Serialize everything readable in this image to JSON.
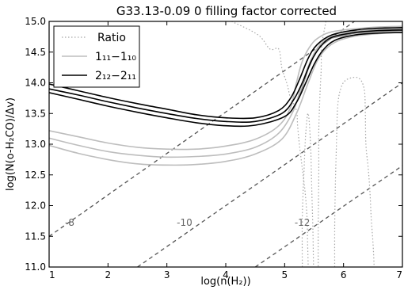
{
  "chart_data": {
    "type": "line",
    "title": "G33.13-0.09 0 filling factor corrected",
    "xlabel": "log(n(H₂))",
    "ylabel": "log(N(o-H₂CO)/Δv)",
    "xlim": [
      1,
      7
    ],
    "ylim": [
      11.0,
      15.0
    ],
    "x_ticks": [
      "1",
      "2",
      "3",
      "4",
      "5",
      "6",
      "7"
    ],
    "y_ticks": [
      "11.0",
      "11.5",
      "12.0",
      "12.5",
      "13.0",
      "13.5",
      "14.0",
      "14.5",
      "15.0"
    ],
    "grid": false,
    "legend": {
      "placement": "top-left",
      "entries": [
        "Ratio",
        "1₁₁−1₁₀",
        "2₁₂−2₁₁"
      ]
    },
    "colors": {
      "ratio": "#a8a8a8",
      "tau_1_1": "#bdbdbd",
      "tau_2_2": "#000000",
      "fill": "#8c8c8c",
      "dashed": "#555555",
      "contour_label": "#666666"
    },
    "contour_labels": [
      "-8",
      "-10",
      "-12"
    ],
    "series": [
      {
        "name": "1₁₁−1₁₀",
        "style": "gray",
        "curves": [
          [
            [
              1.0,
              13.22
            ],
            [
              1.5,
              13.12
            ],
            [
              2.0,
              13.02
            ],
            [
              2.5,
              12.95
            ],
            [
              3.0,
              12.92
            ],
            [
              3.5,
              12.92
            ],
            [
              4.0,
              12.97
            ],
            [
              4.5,
              13.08
            ],
            [
              4.9,
              13.3
            ],
            [
              5.1,
              13.6
            ],
            [
              5.2,
              14.0
            ],
            [
              5.3,
              14.35
            ],
            [
              5.45,
              14.62
            ],
            [
              5.6,
              14.75
            ],
            [
              5.8,
              14.83
            ],
            [
              6.2,
              14.88
            ],
            [
              6.6,
              14.91
            ],
            [
              7.0,
              14.92
            ]
          ],
          [
            [
              1.0,
              13.1
            ],
            [
              1.5,
              12.98
            ],
            [
              2.0,
              12.88
            ],
            [
              2.5,
              12.82
            ],
            [
              3.0,
              12.79
            ],
            [
              3.5,
              12.8
            ],
            [
              4.0,
              12.84
            ],
            [
              4.5,
              12.95
            ],
            [
              4.9,
              13.18
            ],
            [
              5.15,
              13.55
            ],
            [
              5.3,
              14.0
            ],
            [
              5.45,
              14.38
            ],
            [
              5.6,
              14.62
            ],
            [
              5.8,
              14.75
            ],
            [
              6.2,
              14.83
            ],
            [
              6.6,
              14.86
            ],
            [
              7.0,
              14.87
            ]
          ],
          [
            [
              1.0,
              12.98
            ],
            [
              1.5,
              12.85
            ],
            [
              2.0,
              12.75
            ],
            [
              2.5,
              12.68
            ],
            [
              3.0,
              12.66
            ],
            [
              3.5,
              12.67
            ],
            [
              4.0,
              12.72
            ],
            [
              4.5,
              12.84
            ],
            [
              4.95,
              13.08
            ],
            [
              5.2,
              13.5
            ],
            [
              5.4,
              14.0
            ],
            [
              5.55,
              14.35
            ],
            [
              5.7,
              14.55
            ],
            [
              5.9,
              14.68
            ],
            [
              6.2,
              14.76
            ],
            [
              6.6,
              14.8
            ],
            [
              7.0,
              14.82
            ]
          ]
        ]
      },
      {
        "name": "2₁₂−2₁₁",
        "style": "black",
        "curves": [
          [
            [
              1.0,
              13.98
            ],
            [
              1.5,
              13.87
            ],
            [
              2.0,
              13.76
            ],
            [
              2.5,
              13.66
            ],
            [
              3.0,
              13.57
            ],
            [
              3.5,
              13.48
            ],
            [
              4.0,
              13.43
            ],
            [
              4.5,
              13.43
            ],
            [
              4.9,
              13.55
            ],
            [
              5.1,
              13.75
            ],
            [
              5.25,
              14.05
            ],
            [
              5.4,
              14.4
            ],
            [
              5.55,
              14.62
            ],
            [
              5.8,
              14.78
            ],
            [
              6.2,
              14.86
            ],
            [
              6.6,
              14.89
            ],
            [
              7.0,
              14.9
            ]
          ],
          [
            [
              1.0,
              13.9
            ],
            [
              1.5,
              13.8
            ],
            [
              2.0,
              13.69
            ],
            [
              2.5,
              13.59
            ],
            [
              3.0,
              13.5
            ],
            [
              3.5,
              13.42
            ],
            [
              4.0,
              13.37
            ],
            [
              4.5,
              13.37
            ],
            [
              4.95,
              13.5
            ],
            [
              5.15,
              13.72
            ],
            [
              5.3,
              14.0
            ],
            [
              5.45,
              14.35
            ],
            [
              5.6,
              14.58
            ],
            [
              5.8,
              14.74
            ],
            [
              6.2,
              14.82
            ],
            [
              6.6,
              14.85
            ],
            [
              7.0,
              14.86
            ]
          ],
          [
            [
              1.0,
              13.84
            ],
            [
              1.5,
              13.73
            ],
            [
              2.0,
              13.62
            ],
            [
              2.5,
              13.52
            ],
            [
              3.0,
              13.43
            ],
            [
              3.5,
              13.35
            ],
            [
              4.0,
              13.3
            ],
            [
              4.5,
              13.31
            ],
            [
              5.0,
              13.45
            ],
            [
              5.2,
              13.68
            ],
            [
              5.35,
              13.98
            ],
            [
              5.5,
              14.3
            ],
            [
              5.65,
              14.53
            ],
            [
              5.85,
              14.69
            ],
            [
              6.2,
              14.78
            ],
            [
              6.6,
              14.81
            ],
            [
              7.0,
              14.82
            ]
          ]
        ]
      },
      {
        "name": "",
        "style": "band",
        "upper": [
          [
            5.3,
            13.95
          ],
          [
            5.4,
            14.25
          ],
          [
            5.5,
            14.46
          ],
          [
            5.6,
            14.58
          ],
          [
            5.8,
            14.75
          ],
          [
            6.2,
            14.85
          ],
          [
            6.6,
            14.88
          ],
          [
            7.0,
            14.89
          ]
        ],
        "lower": [
          [
            7.0,
            14.84
          ],
          [
            6.6,
            14.83
          ],
          [
            6.2,
            14.8
          ],
          [
            5.8,
            14.72
          ],
          [
            5.6,
            14.58
          ],
          [
            5.5,
            14.42
          ],
          [
            5.4,
            14.2
          ],
          [
            5.3,
            13.9
          ],
          [
            5.2,
            13.65
          ]
        ]
      },
      {
        "name": "Ratio",
        "style": "dotted",
        "curves": [
          [
            [
              4.1,
              15.0
            ],
            [
              4.55,
              14.78
            ],
            [
              4.75,
              14.55
            ],
            [
              4.9,
              14.55
            ],
            [
              4.95,
              14.25
            ],
            [
              5.0,
              14.1
            ],
            [
              5.05,
              13.95
            ],
            [
              5.1,
              13.75
            ],
            [
              5.2,
              13.55
            ],
            [
              5.22,
              13.3
            ],
            [
              5.25,
              13.0
            ],
            [
              5.3,
              12.6
            ],
            [
              5.35,
              12.2
            ],
            [
              5.38,
              11.8
            ],
            [
              5.39,
              11.4
            ],
            [
              5.4,
              11.0
            ]
          ],
          [
            [
              5.7,
              15.0
            ],
            [
              5.63,
              14.6
            ],
            [
              5.62,
              14.2
            ],
            [
              5.6,
              13.8
            ],
            [
              5.58,
              13.2
            ],
            [
              5.58,
              12.5
            ],
            [
              5.57,
              11.6
            ],
            [
              5.57,
              11.0
            ]
          ],
          [
            [
              5.85,
              11.0
            ],
            [
              5.85,
              11.6
            ],
            [
              5.86,
              12.3
            ],
            [
              5.88,
              13.0
            ],
            [
              5.9,
              13.6
            ],
            [
              5.95,
              13.9
            ],
            [
              6.05,
              14.05
            ],
            [
              6.25,
              14.08
            ],
            [
              6.35,
              13.9
            ],
            [
              6.37,
              13.5
            ],
            [
              6.38,
              13.0
            ],
            [
              6.42,
              12.6
            ],
            [
              6.45,
              12.2
            ],
            [
              6.47,
              11.8
            ],
            [
              6.5,
              11.4
            ],
            [
              6.52,
              11.0
            ]
          ],
          [
            [
              5.3,
              11.0
            ],
            [
              5.3,
              11.8
            ],
            [
              5.33,
              12.6
            ],
            [
              5.36,
              13.2
            ],
            [
              5.4,
              13.5
            ],
            [
              5.44,
              13.0
            ],
            [
              5.46,
              12.3
            ],
            [
              5.48,
              11.6
            ],
            [
              5.49,
              11.0
            ]
          ]
        ]
      },
      {
        "name": "",
        "style": "dashed",
        "curves": [
          [
            [
              1.0,
              11.5
            ],
            [
              7.0,
              15.55
            ]
          ],
          [
            [
              2.5,
              11.0
            ],
            [
              7.0,
              14.0
            ]
          ],
          [
            [
              4.5,
              11.0
            ],
            [
              7.0,
              12.65
            ]
          ]
        ]
      }
    ]
  }
}
